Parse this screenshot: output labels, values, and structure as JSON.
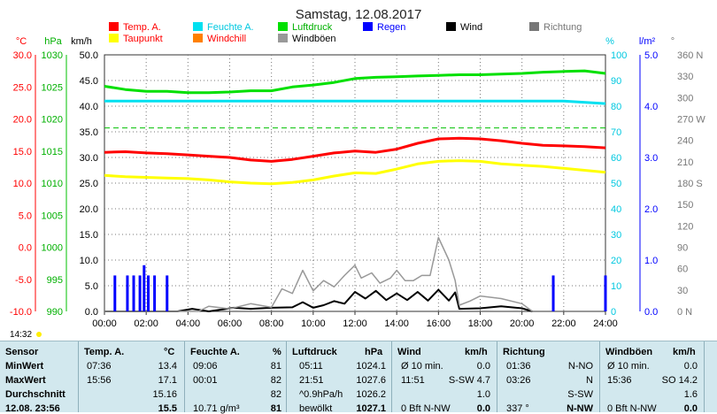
{
  "title": "Samstag, 12.08.2017",
  "axis_units": {
    "temp": "°C",
    "pressure": "hPa",
    "wind": "km/h",
    "humidity": "%",
    "rain": "l/m²",
    "direction": "°"
  },
  "legend": [
    {
      "name": "Temp. A.",
      "color": "#ff0000",
      "text_color": "#ff0000"
    },
    {
      "name": "Feuchte A.",
      "color": "#00e0f0",
      "text_color": "#00c8e0"
    },
    {
      "name": "Luftdruck",
      "color": "#00e000",
      "text_color": "#00b000"
    },
    {
      "name": "Regen",
      "color": "#0000ff",
      "text_color": "#0000ff"
    },
    {
      "name": "Wind",
      "color": "#000000",
      "text_color": "#000000"
    },
    {
      "name": "Richtung",
      "color": "#777777",
      "text_color": "#777777"
    },
    {
      "name": "Taupunkt",
      "color": "#ffff00",
      "text_color": "#ff0000"
    },
    {
      "name": "Windchill",
      "color": "#ff8000",
      "text_color": "#ff0000"
    },
    {
      "name": "Windböen",
      "color": "#999999",
      "text_color": "#000000"
    }
  ],
  "left_time": "14:32",
  "chart_data": {
    "type": "line",
    "title": "Samstag, 12.08.2017",
    "x_ticks": [
      "00:00",
      "02:00",
      "04:00",
      "06:00",
      "08:00",
      "10:00",
      "12:00",
      "14:00",
      "16:00",
      "18:00",
      "20:00",
      "22:00",
      "24:00"
    ],
    "xlim": [
      0,
      24
    ],
    "axes": {
      "temp": {
        "label": "°C",
        "ylim": [
          -10,
          30
        ],
        "ticks": [
          "30.0",
          "25.0",
          "20.0",
          "15.0",
          "10.0",
          "5.0",
          "0.0",
          "-5.0",
          "-10.0"
        ]
      },
      "pressure": {
        "label": "hPa",
        "ylim": [
          990,
          1030
        ],
        "ticks": [
          "1030",
          "1025",
          "1020",
          "1015",
          "1010",
          "1005",
          "1000",
          "995",
          "990"
        ]
      },
      "wind": {
        "label": "km/h",
        "ylim": [
          0,
          50
        ],
        "ticks": [
          "50.0",
          "45.0",
          "40.0",
          "35.0",
          "30.0",
          "25.0",
          "20.0",
          "15.0",
          "10.0",
          "5.0",
          "0.0"
        ]
      },
      "humidity": {
        "label": "%",
        "ylim": [
          0,
          100
        ],
        "ticks": [
          "100",
          "90",
          "80",
          "70",
          "60",
          "50",
          "40",
          "30",
          "20",
          "10",
          "0"
        ]
      },
      "rain": {
        "label": "l/m²",
        "ylim": [
          0,
          5
        ],
        "ticks": [
          "5.0",
          "4.0",
          "3.0",
          "2.0",
          "1.0",
          "0.0"
        ]
      },
      "direction": {
        "label": "°",
        "ylim": [
          0,
          360
        ],
        "ticks": [
          "360 N",
          "330",
          "300",
          "270 W",
          "240",
          "210",
          "180 S",
          "150",
          "120",
          "90",
          "60",
          "30",
          "0 N"
        ]
      }
    },
    "series": [
      {
        "name": "Temp. A.",
        "axis": "temp",
        "color": "#ff0000",
        "x": [
          0,
          1,
          2,
          3,
          4,
          5,
          6,
          7,
          8,
          9,
          10,
          11,
          12,
          13,
          14,
          15,
          16,
          17,
          18,
          19,
          20,
          21,
          22,
          23,
          24
        ],
        "y": [
          14.8,
          14.9,
          14.7,
          14.6,
          14.4,
          14.2,
          14.0,
          13.6,
          13.4,
          13.7,
          14.2,
          14.7,
          15.0,
          14.8,
          15.3,
          16.2,
          16.9,
          17.0,
          16.9,
          16.6,
          16.2,
          15.9,
          15.8,
          15.7,
          15.5
        ]
      },
      {
        "name": "Taupunkt",
        "axis": "temp",
        "color": "#ffff00",
        "x": [
          0,
          1,
          2,
          3,
          4,
          5,
          6,
          7,
          8,
          9,
          10,
          11,
          12,
          13,
          14,
          15,
          16,
          17,
          18,
          19,
          20,
          21,
          22,
          23,
          24
        ],
        "y": [
          11.2,
          11.0,
          10.9,
          10.8,
          10.7,
          10.5,
          10.2,
          10.0,
          9.9,
          10.1,
          10.5,
          11.1,
          11.6,
          11.5,
          12.2,
          13.0,
          13.4,
          13.5,
          13.4,
          13.0,
          12.8,
          12.6,
          12.3,
          12.0,
          11.7
        ]
      },
      {
        "name": "Luftdruck",
        "axis": "pressure",
        "color": "#00e000",
        "x": [
          0,
          1,
          2,
          3,
          4,
          5,
          6,
          7,
          8,
          9,
          10,
          11,
          12,
          13,
          14,
          15,
          16,
          17,
          18,
          19,
          20,
          21,
          22,
          23,
          24
        ],
        "y": [
          1025.1,
          1024.6,
          1024.3,
          1024.3,
          1024.1,
          1024.1,
          1024.2,
          1024.4,
          1024.4,
          1025.0,
          1025.3,
          1025.7,
          1026.3,
          1026.5,
          1026.6,
          1026.7,
          1026.8,
          1026.9,
          1026.9,
          1027.0,
          1027.1,
          1027.3,
          1027.4,
          1027.5,
          1027.1
        ]
      },
      {
        "name": "Feuchte A.",
        "axis": "humidity",
        "color": "#00e0f0",
        "x": [
          0,
          2,
          4,
          6,
          8,
          10,
          12,
          14,
          16,
          18,
          20,
          22,
          24
        ],
        "y": [
          82,
          82,
          82,
          82,
          82,
          82,
          82,
          82,
          82,
          82,
          82,
          82,
          81
        ]
      },
      {
        "name": "Wind",
        "axis": "wind",
        "color": "#000000",
        "x": [
          0,
          3.5,
          4.2,
          5,
          5.5,
          6.2,
          7,
          8,
          9,
          9.5,
          10,
          10.5,
          11,
          11.5,
          12,
          12.5,
          13,
          13.5,
          14,
          14.5,
          15,
          15.5,
          16,
          16.5,
          16.8,
          17,
          18,
          19,
          20,
          20.5
        ],
        "y": [
          0,
          0,
          0.5,
          0,
          0.3,
          0.7,
          0.5,
          0.7,
          0.8,
          1.8,
          0.7,
          1.2,
          2.0,
          1.5,
          3.8,
          2.5,
          4.0,
          2.2,
          3.5,
          2.2,
          3.8,
          2.1,
          4.2,
          2.1,
          3.7,
          0.5,
          0.6,
          1.0,
          0.6,
          0
        ]
      },
      {
        "name": "Windböen",
        "axis": "wind",
        "color": "#999999",
        "x": [
          0,
          4.5,
          5,
          6,
          7,
          8,
          8.5,
          9,
          9.5,
          10,
          10.5,
          11,
          11.5,
          12,
          12.3,
          12.8,
          13.2,
          13.7,
          14,
          14.4,
          14.8,
          15.2,
          15.6,
          16,
          16.5,
          16.8,
          17,
          17.5,
          18,
          19,
          20,
          20.5
        ],
        "y": [
          0,
          0,
          1.0,
          0.5,
          1.5,
          0.8,
          4.4,
          3.5,
          8.0,
          4.0,
          6.0,
          4.8,
          7.0,
          9.0,
          6.5,
          7.5,
          5.5,
          6.5,
          8.0,
          6.0,
          6.0,
          7.0,
          7.0,
          14.4,
          10.0,
          6.0,
          1.2,
          2.0,
          3.0,
          2.5,
          1.5,
          0
        ]
      },
      {
        "name": "Regen",
        "axis": "rain",
        "color": "#0000ff",
        "x": [
          0.5,
          1.1,
          1.4,
          1.7,
          1.9,
          2.1,
          2.4,
          3.0,
          21.5,
          24.0
        ],
        "y": [
          0.7,
          0.7,
          0.7,
          0.7,
          0.9,
          0.7,
          0.7,
          0.7,
          0.7,
          0.7
        ]
      }
    ]
  },
  "stats": {
    "headers": {
      "sensor": "Sensor",
      "temp": "Temp. A.",
      "temp_unit": "°C",
      "hum": "Feuchte A.",
      "hum_unit": "%",
      "press": "Luftdruck",
      "press_unit": "hPa",
      "wind": "Wind",
      "wind_unit": "km/h",
      "dir": "Richtung",
      "gust": "Windböen",
      "gust_unit": "km/h"
    },
    "rows": [
      {
        "label": "MinWert",
        "temp_time": "07:36",
        "temp_val": "13.4",
        "hum_time": "09:06",
        "hum_val": "81",
        "press_time": "05:11",
        "press_val": "1024.1",
        "wind_time": "Ø 10 min.",
        "wind_val": "0.0",
        "dir_time": "01:36",
        "dir_val": "N-NO",
        "gust_time": "Ø 10 min.",
        "gust_val": "0.0"
      },
      {
        "label": "MaxWert",
        "temp_time": "15:56",
        "temp_val": "17.1",
        "hum_time": "00:01",
        "hum_val": "82",
        "press_time": "21:51",
        "press_val": "1027.6",
        "wind_time": "11:51",
        "wind_val": "S-SW 4.7",
        "dir_time": "03:26",
        "dir_val": "N",
        "gust_time": "15:36",
        "gust_val": "SO 14.2"
      },
      {
        "label": "Durchschnitt",
        "temp_time": "",
        "temp_val": "15.16",
        "hum_time": "",
        "hum_val": "82",
        "press_time": "^0.9hPa/h",
        "press_val": "1026.2",
        "wind_time": "",
        "wind_val": "1.0",
        "dir_time": "",
        "dir_val": "S-SW",
        "gust_time": "",
        "gust_val": "1.6"
      },
      {
        "label": "12.08. 23:56",
        "temp_time": "",
        "temp_val": "15.5",
        "hum_time": "10.71 g/m³",
        "hum_val": "81",
        "press_time": "bewölkt",
        "press_val": "1027.1",
        "wind_time": "0 Bft N-NW",
        "wind_val": "0.0",
        "dir_time": "337 °",
        "dir_val": "N-NW",
        "gust_time": "0 Bft N-NW",
        "gust_val": "0.0"
      }
    ]
  }
}
